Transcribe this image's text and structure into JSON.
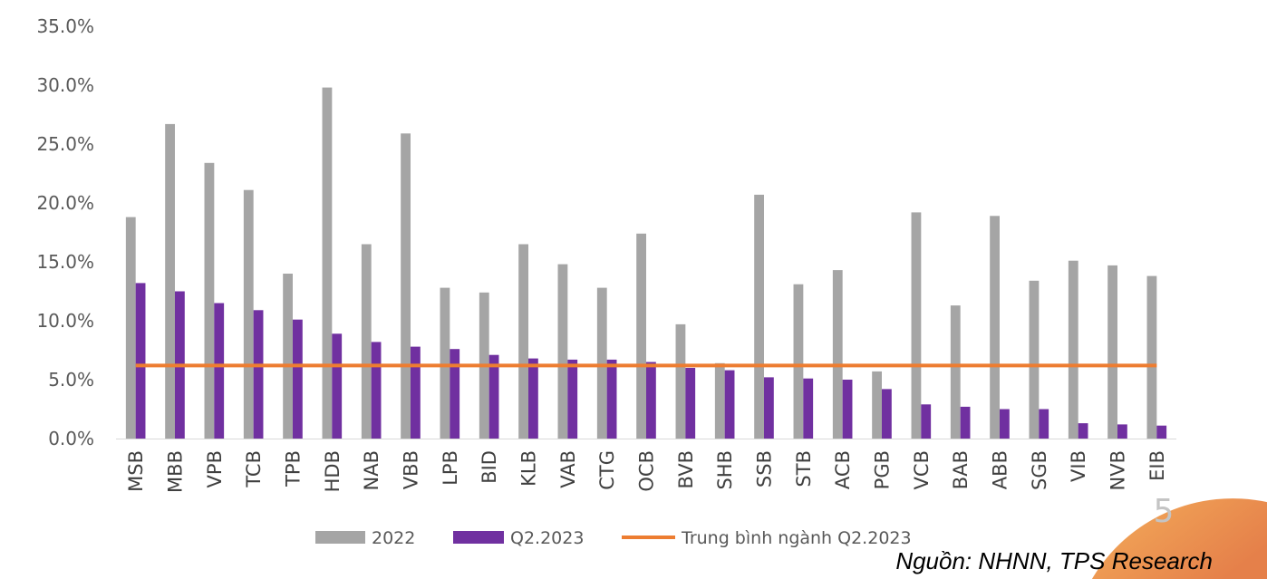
{
  "chart_data": {
    "type": "bar",
    "title": "",
    "xlabel": "",
    "ylabel": "",
    "ylim": [
      0,
      35
    ],
    "grid": false,
    "legend_position": "bottom",
    "y_ticks": [
      {
        "value": 0,
        "label": "0.0%"
      },
      {
        "value": 5,
        "label": "5.0%"
      },
      {
        "value": 10,
        "label": "10.0%"
      },
      {
        "value": 15,
        "label": "15.0%"
      },
      {
        "value": 20,
        "label": "20.0%"
      },
      {
        "value": 25,
        "label": "25.0%"
      },
      {
        "value": 30,
        "label": "30.0%"
      },
      {
        "value": 35,
        "label": "35.0%"
      }
    ],
    "categories": [
      "MSB",
      "MBB",
      "VPB",
      "TCB",
      "TPB",
      "HDB",
      "NAB",
      "VBB",
      "LPB",
      "BID",
      "KLB",
      "VAB",
      "CTG",
      "OCB",
      "BVB",
      "SHB",
      "SSB",
      "STB",
      "ACB",
      "PGB",
      "VCB",
      "BAB",
      "ABB",
      "SGB",
      "VIB",
      "NVB",
      "EIB"
    ],
    "series": [
      {
        "name": "2022",
        "type": "bar",
        "color": "#a5a5a5",
        "values": [
          18.8,
          26.7,
          23.4,
          21.1,
          14.0,
          29.8,
          16.5,
          25.9,
          12.8,
          12.4,
          16.5,
          14.8,
          12.8,
          17.4,
          9.7,
          6.4,
          20.7,
          13.1,
          14.3,
          5.7,
          19.2,
          11.3,
          18.9,
          13.4,
          15.1,
          14.7,
          13.8
        ]
      },
      {
        "name": "Q2.2023",
        "type": "bar",
        "color": "#7030a0",
        "values": [
          13.2,
          12.5,
          11.5,
          10.9,
          10.1,
          8.9,
          8.2,
          7.8,
          7.6,
          7.1,
          6.8,
          6.7,
          6.7,
          6.5,
          6.0,
          5.8,
          5.2,
          5.1,
          5.0,
          4.2,
          2.9,
          2.7,
          2.5,
          2.5,
          1.3,
          1.2,
          1.1
        ]
      },
      {
        "name": "Trung bình ngành Q2.2023",
        "type": "line",
        "color": "#ed7d31",
        "values": [
          6.2,
          6.2,
          6.2,
          6.2,
          6.2,
          6.2,
          6.2,
          6.2,
          6.2,
          6.2,
          6.2,
          6.2,
          6.2,
          6.2,
          6.2,
          6.2,
          6.2,
          6.2,
          6.2,
          6.2,
          6.2,
          6.2,
          6.2,
          6.2,
          6.2,
          6.2,
          6.2
        ]
      }
    ]
  },
  "source_note": "Nguồn: NHNN, TPS Research",
  "page_number": "5",
  "theme": {
    "axis_line": "#d9d9d9",
    "corner_gradient_start": "#f4ad5a",
    "corner_gradient_end": "#e5804a"
  }
}
